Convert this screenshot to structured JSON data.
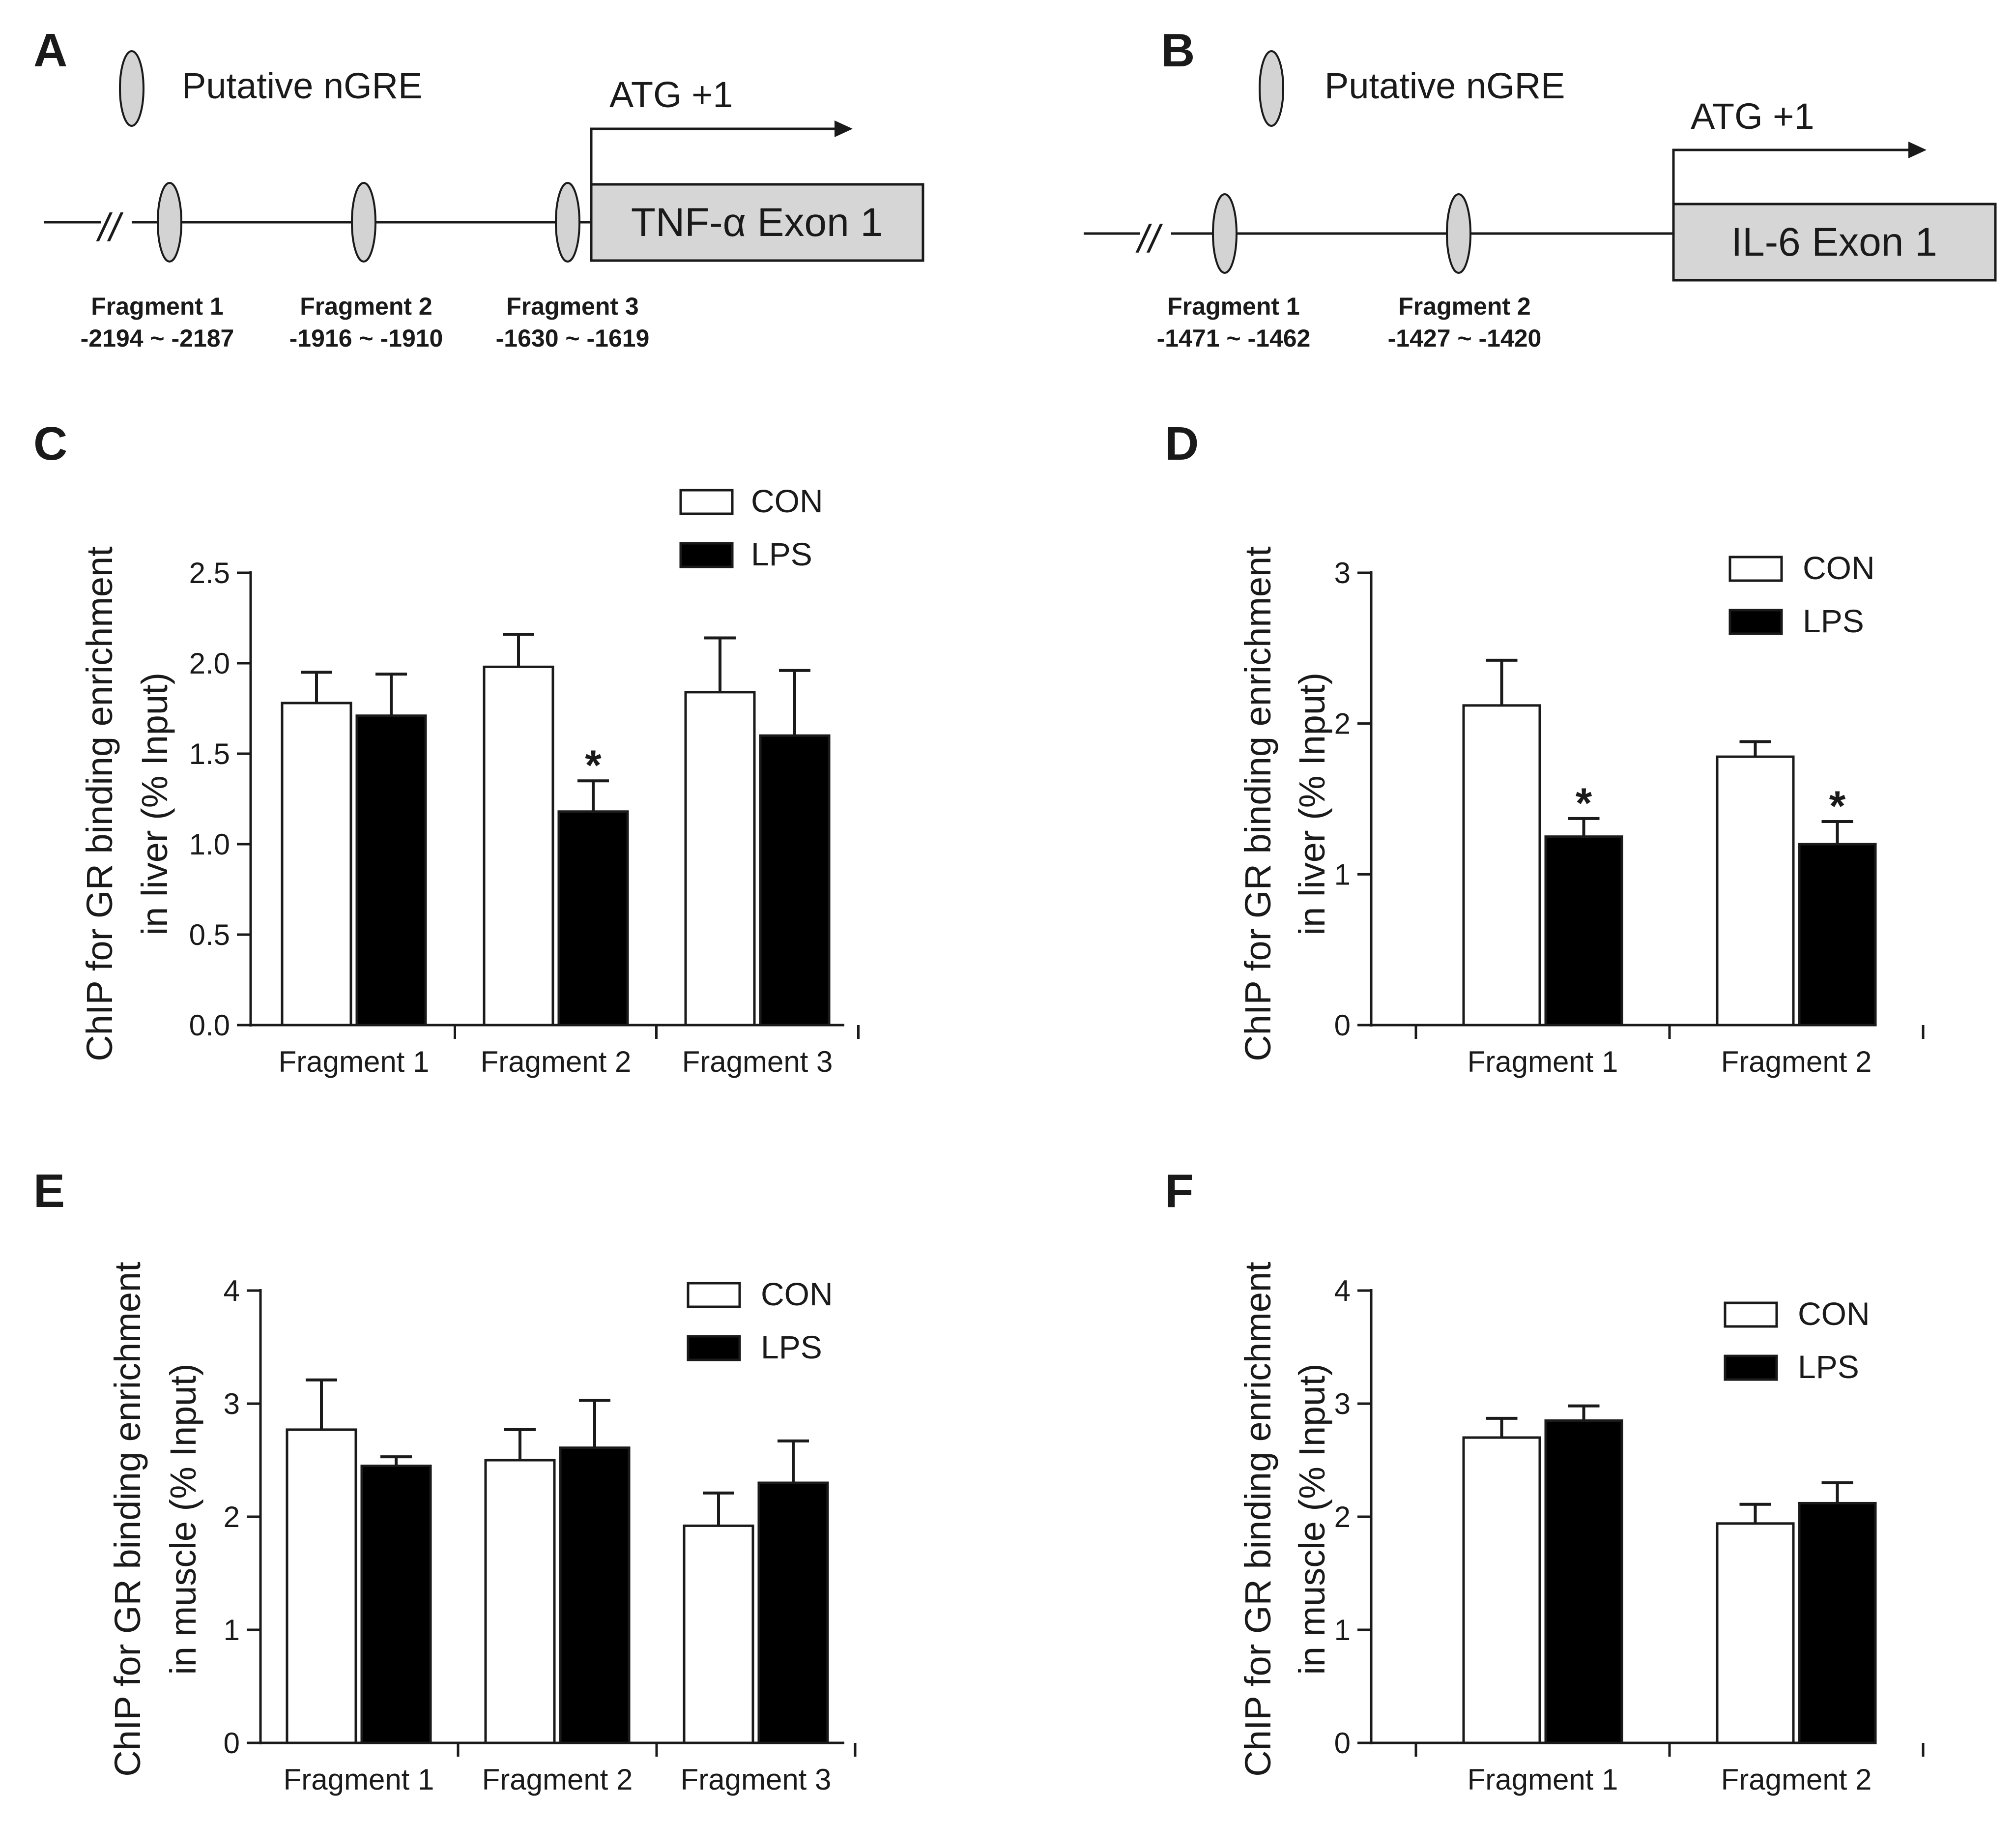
{
  "diagrams": [
    {
      "panel": "A",
      "legend_label": "Putative nGRE",
      "start_label": "ATG +1",
      "exon_label": "TNF-α Exon 1",
      "break_mark": "//",
      "fragments": [
        {
          "name": "Fragment 1",
          "range": "-2194 ~ -2187"
        },
        {
          "name": "Fragment 2",
          "range": "-1916 ~ -1910"
        },
        {
          "name": "Fragment 3",
          "range": "-1630 ~ -1619"
        }
      ]
    },
    {
      "panel": "B",
      "legend_label": "Putative nGRE",
      "start_label": "ATG +1",
      "exon_label": "IL-6 Exon 1",
      "break_mark": "//",
      "fragments": [
        {
          "name": "Fragment 1",
          "range": "-1471 ~ -1462"
        },
        {
          "name": "Fragment 2",
          "range": "-1427 ~ -1420"
        }
      ]
    }
  ],
  "colors": {
    "con": "#ffffff",
    "lps": "#000000",
    "oval": "#d3d3d3",
    "exon": "#d6d6d6",
    "ink": "#1a1a1a"
  },
  "chart_data": [
    {
      "panel": "C",
      "type": "bar",
      "categories": [
        "Fragment 1",
        "Fragment 2",
        "Fragment 3"
      ],
      "series": [
        {
          "name": "CON",
          "values": [
            1.78,
            1.98,
            1.84
          ],
          "errors": [
            0.17,
            0.18,
            0.3
          ]
        },
        {
          "name": "LPS",
          "values": [
            1.71,
            1.18,
            1.6
          ],
          "errors": [
            0.23,
            0.17,
            0.36
          ]
        }
      ],
      "significance": [
        {
          "category": "Fragment 2",
          "series": "LPS",
          "mark": "*"
        }
      ],
      "yticks": [
        "0.0",
        "0.5",
        "1.0",
        "1.5",
        "2.0",
        "2.5"
      ],
      "ylim": [
        0,
        2.5
      ],
      "ylabel_lines": [
        "ChIP for GR binding enrichment",
        "in liver (% Input)"
      ],
      "legend_position": "top-right"
    },
    {
      "panel": "D",
      "type": "bar",
      "categories": [
        "Fragment 1",
        "Fragment 2"
      ],
      "series": [
        {
          "name": "CON",
          "values": [
            2.12,
            1.78
          ],
          "errors": [
            0.3,
            0.1
          ]
        },
        {
          "name": "LPS",
          "values": [
            1.25,
            1.2
          ],
          "errors": [
            0.12,
            0.15
          ]
        }
      ],
      "significance": [
        {
          "category": "Fragment 1",
          "series": "LPS",
          "mark": "*"
        },
        {
          "category": "Fragment 2",
          "series": "LPS",
          "mark": "*"
        }
      ],
      "yticks": [
        "0",
        "1",
        "2",
        "3"
      ],
      "ylim": [
        0,
        3
      ],
      "ylabel_lines": [
        "ChIP for GR binding enrichment",
        "in liver (% Input)"
      ],
      "legend_position": "top-right"
    },
    {
      "panel": "E",
      "type": "bar",
      "categories": [
        "Fragment 1",
        "Fragment 2",
        "Fragment 3"
      ],
      "series": [
        {
          "name": "CON",
          "values": [
            2.77,
            2.5,
            1.92
          ],
          "errors": [
            0.44,
            0.27,
            0.29
          ]
        },
        {
          "name": "LPS",
          "values": [
            2.45,
            2.61,
            2.3
          ],
          "errors": [
            0.08,
            0.42,
            0.37
          ]
        }
      ],
      "significance": [],
      "yticks": [
        "0",
        "1",
        "2",
        "3",
        "4"
      ],
      "ylim": [
        0,
        4
      ],
      "ylabel_lines": [
        "ChIP for GR binding enrichment",
        "in muscle (% Input)"
      ],
      "legend_position": "top-right"
    },
    {
      "panel": "F",
      "type": "bar",
      "categories": [
        "Fragment 1",
        "Fragment 2"
      ],
      "series": [
        {
          "name": "CON",
          "values": [
            2.7,
            1.94
          ],
          "errors": [
            0.17,
            0.17
          ]
        },
        {
          "name": "LPS",
          "values": [
            2.85,
            2.12
          ],
          "errors": [
            0.13,
            0.18
          ]
        }
      ],
      "significance": [],
      "yticks": [
        "0",
        "1",
        "2",
        "3",
        "4"
      ],
      "ylim": [
        0,
        4
      ],
      "ylabel_lines": [
        "ChIP for GR binding enrichment",
        "in muscle (% Input)"
      ],
      "legend_position": "top-right"
    }
  ]
}
